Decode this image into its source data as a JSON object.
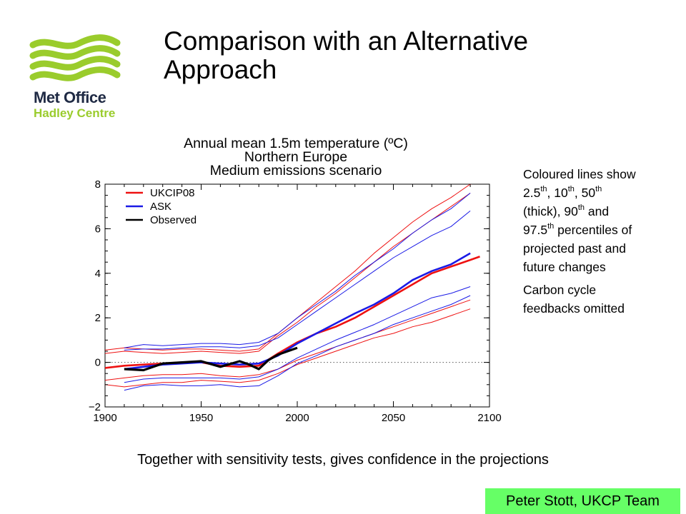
{
  "slide": {
    "title": "Comparison with an Alternative Approach",
    "caption": "Together with sensitivity tests, gives confidence in the projections",
    "credit": "Peter Stott, UKCP Team"
  },
  "logo": {
    "line1": "Met Office",
    "line2": "Hadley Centre",
    "colors": {
      "wave": "#9acc2c",
      "text": "#1f2a44"
    }
  },
  "notes": {
    "p1": [
      {
        "t": "Coloured lines show 2.5"
      },
      {
        "t": "th",
        "sup": true
      },
      {
        "t": ", 10"
      },
      {
        "t": "th",
        "sup": true
      },
      {
        "t": ", 50"
      },
      {
        "t": "th",
        "sup": true
      },
      {
        "t": " (thick), 90"
      },
      {
        "t": "th",
        "sup": true
      },
      {
        "t": " and 97.5"
      },
      {
        "t": "th",
        "sup": true
      },
      {
        "t": " percentiles of projected past and future changes"
      }
    ],
    "p2": "Carbon cycle feedbacks omitted"
  },
  "chart_data": {
    "type": "line",
    "title": [
      "Annual mean 1.5m temperature (ºC)",
      "Northern Europe",
      "Medium emissions scenario"
    ],
    "xlim": [
      1900,
      2100
    ],
    "ylim": [
      -2,
      8
    ],
    "xticks": [
      1900,
      1950,
      2000,
      2050,
      2100
    ],
    "yticks": [
      -2,
      0,
      2,
      4,
      6,
      8
    ],
    "xtick_labels": [
      "1900",
      "1950",
      "2000",
      "2050",
      "2100"
    ],
    "ytick_labels": [
      "−2",
      "0",
      "2",
      "4",
      "6",
      "8"
    ],
    "zero_line": true,
    "legend_position": "top-left",
    "legend": [
      {
        "name": "UKCIP08",
        "color": "#ee1111"
      },
      {
        "name": "ASK",
        "color": "#1a1ae6"
      },
      {
        "name": "Observed",
        "color": "#000000"
      }
    ],
    "series": [
      {
        "name": "UKCIP08",
        "percentile": "2.5",
        "color": "#ee1111",
        "thick": false,
        "x": [
          1900,
          1910,
          1920,
          1930,
          1940,
          1950,
          1960,
          1970,
          1980,
          1990,
          2000,
          2010,
          2020,
          2030,
          2040,
          2050,
          2060,
          2070,
          2080,
          2090
        ],
        "y": [
          -1.0,
          -1.1,
          -1.0,
          -0.9,
          -0.9,
          -0.8,
          -0.85,
          -0.9,
          -0.8,
          -0.5,
          -0.1,
          0.2,
          0.5,
          0.8,
          1.1,
          1.3,
          1.6,
          1.8,
          2.1,
          2.4
        ]
      },
      {
        "name": "UKCIP08",
        "percentile": "10",
        "color": "#ee1111",
        "thick": false,
        "x": [
          1900,
          1910,
          1920,
          1930,
          1940,
          1950,
          1960,
          1970,
          1980,
          1990,
          2000,
          2010,
          2020,
          2030,
          2040,
          2050,
          2060,
          2070,
          2080,
          2090
        ],
        "y": [
          -0.8,
          -0.7,
          -0.6,
          -0.55,
          -0.55,
          -0.5,
          -0.6,
          -0.65,
          -0.55,
          -0.3,
          0.1,
          0.4,
          0.7,
          1.0,
          1.3,
          1.6,
          1.9,
          2.2,
          2.5,
          2.8
        ]
      },
      {
        "name": "UKCIP08",
        "percentile": "50",
        "color": "#ee1111",
        "thick": true,
        "x": [
          1900,
          1910,
          1920,
          1930,
          1940,
          1950,
          1960,
          1970,
          1980,
          1990,
          2000,
          2010,
          2020,
          2030,
          2040,
          2050,
          2060,
          2070,
          2080,
          2090,
          2095
        ],
        "y": [
          -0.25,
          -0.15,
          -0.1,
          -0.05,
          0.0,
          0.0,
          -0.15,
          -0.2,
          -0.15,
          0.4,
          0.9,
          1.3,
          1.6,
          2.0,
          2.5,
          3.0,
          3.5,
          4.0,
          4.3,
          4.6,
          4.75
        ]
      },
      {
        "name": "UKCIP08",
        "percentile": "90",
        "color": "#ee1111",
        "thick": false,
        "x": [
          1900,
          1910,
          1920,
          1930,
          1940,
          1950,
          1960,
          1970,
          1980,
          1990,
          2000,
          2010,
          2020,
          2030,
          2040,
          2050,
          2060,
          2070,
          2080,
          2090
        ],
        "y": [
          0.4,
          0.5,
          0.45,
          0.4,
          0.45,
          0.5,
          0.45,
          0.4,
          0.5,
          1.2,
          1.8,
          2.5,
          3.1,
          3.8,
          4.5,
          5.2,
          5.8,
          6.4,
          7.0,
          7.6
        ]
      },
      {
        "name": "UKCIP08",
        "percentile": "97.5",
        "color": "#ee1111",
        "thick": false,
        "x": [
          1900,
          1910,
          1920,
          1930,
          1940,
          1950,
          1960,
          1970,
          1980,
          1990,
          2000,
          2010,
          2020,
          2030,
          2040,
          2050,
          2060,
          2070,
          2080,
          2090,
          2095
        ],
        "y": [
          0.55,
          0.65,
          0.6,
          0.55,
          0.6,
          0.6,
          0.55,
          0.5,
          0.6,
          1.3,
          2.0,
          2.7,
          3.4,
          4.1,
          4.9,
          5.6,
          6.3,
          6.9,
          7.4,
          8.0,
          8.1
        ]
      },
      {
        "name": "ASK",
        "percentile": "2.5",
        "color": "#1a1ae6",
        "thick": false,
        "x": [
          1910,
          1920,
          1930,
          1940,
          1950,
          1960,
          1970,
          1980,
          1990,
          2000,
          2010,
          2020,
          2030,
          2040,
          2050,
          2060,
          2070,
          2080,
          2090
        ],
        "y": [
          -1.25,
          -1.05,
          -1.0,
          -1.05,
          -1.05,
          -1.0,
          -1.1,
          -1.05,
          -0.6,
          -0.05,
          0.3,
          0.7,
          1.0,
          1.3,
          1.7,
          2.0,
          2.3,
          2.6,
          3.0
        ]
      },
      {
        "name": "ASK",
        "percentile": "10",
        "color": "#1a1ae6",
        "thick": false,
        "x": [
          1910,
          1920,
          1930,
          1940,
          1950,
          1960,
          1970,
          1980,
          1990,
          2000,
          2010,
          2020,
          2030,
          2040,
          2050,
          2060,
          2070,
          2080,
          2090
        ],
        "y": [
          -0.9,
          -0.75,
          -0.7,
          -0.7,
          -0.7,
          -0.7,
          -0.75,
          -0.65,
          -0.3,
          0.2,
          0.6,
          1.0,
          1.35,
          1.7,
          2.1,
          2.5,
          2.9,
          3.1,
          3.4
        ]
      },
      {
        "name": "ASK",
        "percentile": "50",
        "color": "#1a1ae6",
        "thick": true,
        "x": [
          1910,
          1920,
          1930,
          1940,
          1950,
          1960,
          1970,
          1980,
          1990,
          2000,
          2010,
          2020,
          2030,
          2040,
          2050,
          2060,
          2070,
          2080,
          2090
        ],
        "y": [
          -0.3,
          -0.2,
          -0.1,
          -0.05,
          0.0,
          -0.05,
          -0.1,
          -0.05,
          0.3,
          0.85,
          1.3,
          1.75,
          2.2,
          2.6,
          3.1,
          3.7,
          4.1,
          4.4,
          4.9
        ]
      },
      {
        "name": "ASK",
        "percentile": "90",
        "color": "#1a1ae6",
        "thick": false,
        "x": [
          1910,
          1920,
          1930,
          1940,
          1950,
          1960,
          1970,
          1980,
          1990,
          2000,
          2010,
          2020,
          2030,
          2040,
          2050,
          2060,
          2070,
          2080,
          2090
        ],
        "y": [
          0.55,
          0.6,
          0.6,
          0.65,
          0.7,
          0.7,
          0.65,
          0.75,
          1.1,
          1.7,
          2.3,
          2.9,
          3.5,
          4.1,
          4.7,
          5.2,
          5.7,
          6.1,
          6.8
        ]
      },
      {
        "name": "ASK",
        "percentile": "97.5",
        "color": "#1a1ae6",
        "thick": false,
        "x": [
          1910,
          1920,
          1930,
          1940,
          1950,
          1960,
          1970,
          1980,
          1990,
          2000,
          2010,
          2020,
          2030,
          2040,
          2050,
          2060,
          2070,
          2080,
          2090
        ],
        "y": [
          0.65,
          0.8,
          0.75,
          0.8,
          0.85,
          0.85,
          0.8,
          0.9,
          1.3,
          2.0,
          2.6,
          3.2,
          3.9,
          4.5,
          5.1,
          5.8,
          6.4,
          6.9,
          7.6
        ]
      },
      {
        "name": "Observed",
        "color": "#000000",
        "thick": true,
        "x": [
          1910,
          1920,
          1930,
          1940,
          1950,
          1960,
          1970,
          1975,
          1980,
          1985,
          1990,
          1995,
          2000
        ],
        "y": [
          -0.3,
          -0.35,
          -0.05,
          0.0,
          0.05,
          -0.2,
          0.05,
          -0.1,
          -0.3,
          0.1,
          0.35,
          0.5,
          0.65
        ]
      }
    ]
  }
}
